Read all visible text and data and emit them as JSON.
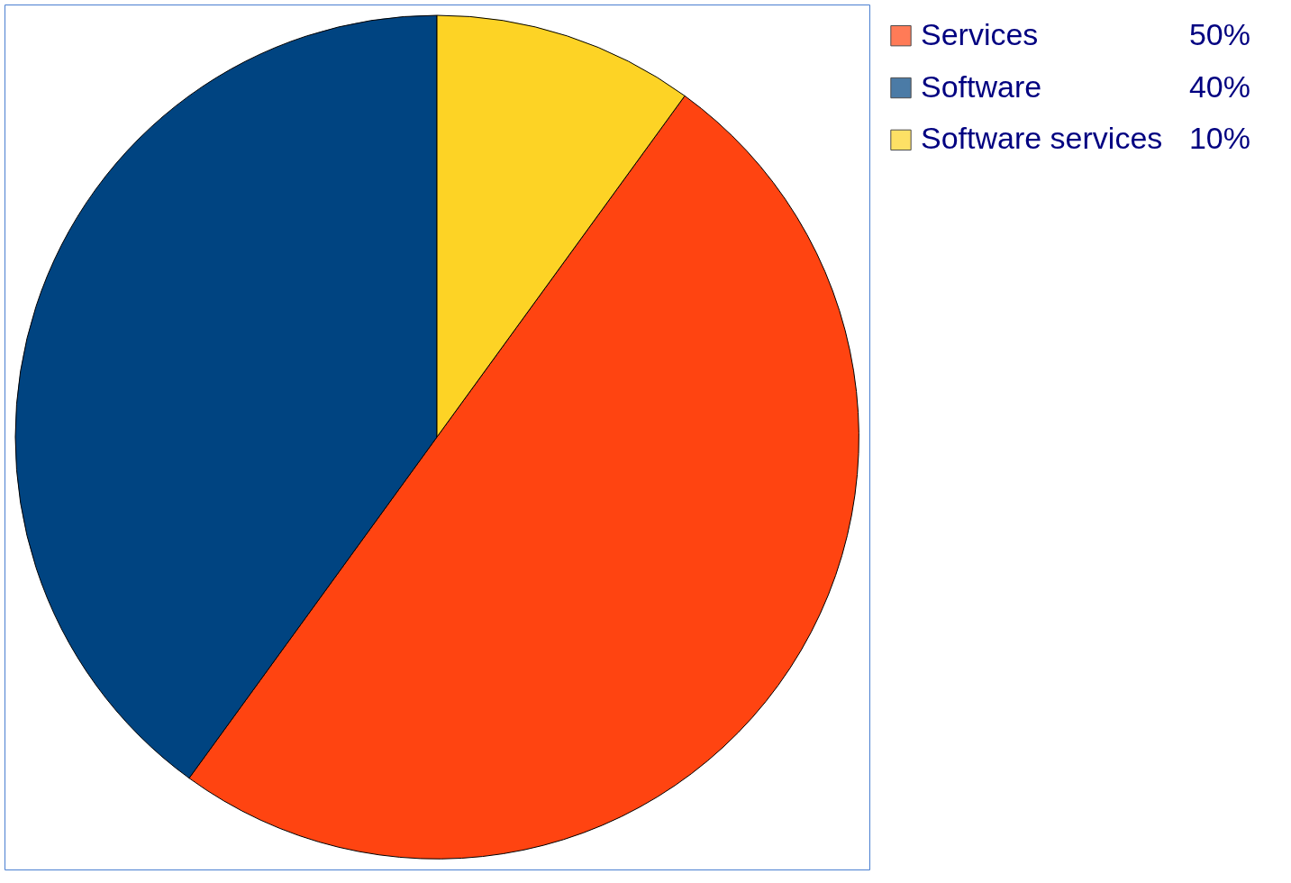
{
  "chart_data": {
    "type": "pie",
    "categories": [
      "Services",
      "Software",
      "Software services"
    ],
    "values": [
      50,
      40,
      10
    ],
    "value_labels": [
      "50%",
      "40%",
      "10%"
    ],
    "colors": [
      "#ff4411",
      "#004481",
      "#fdd325"
    ],
    "legend": "right"
  }
}
